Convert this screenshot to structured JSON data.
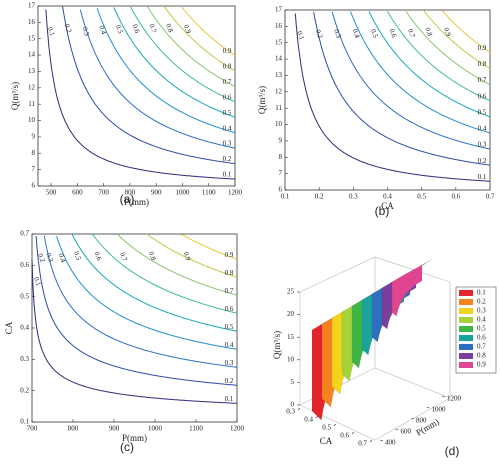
{
  "chart_data": [
    {
      "type": "contour",
      "caption": "(a)",
      "xlabel": "P(mm)",
      "ylabel": "Q(m³/s)",
      "xlim": [
        450,
        1200
      ],
      "ylim": [
        6,
        17
      ],
      "xticks": [
        500,
        600,
        700,
        800,
        900,
        1000,
        1100,
        1200
      ],
      "yticks": [
        6,
        7,
        8,
        9,
        10,
        11,
        12,
        13,
        14,
        15,
        16,
        17
      ],
      "levels": [
        0.1,
        0.2,
        0.3,
        0.4,
        0.5,
        0.6,
        0.7,
        0.8,
        0.9
      ],
      "colors": [
        "#2b2d7a",
        "#2d4aa8",
        "#2a6fc9",
        "#1f8fd0",
        "#17a8b8",
        "#3fbc9a",
        "#8cc46d",
        "#c9c44a",
        "#e8c83a"
      ]
    },
    {
      "type": "contour",
      "caption": "(b)",
      "xlabel": "CA",
      "ylabel": "Q(m³/s)",
      "xlim": [
        0.1,
        0.7
      ],
      "ylim": [
        6,
        17
      ],
      "xticks": [
        0.1,
        0.2,
        0.3,
        0.4,
        0.5,
        0.6,
        0.7
      ],
      "yticks": [
        6,
        7,
        8,
        9,
        10,
        11,
        12,
        13,
        14,
        15,
        16,
        17
      ],
      "levels": [
        0.1,
        0.2,
        0.3,
        0.4,
        0.5,
        0.6,
        0.7,
        0.8,
        0.9
      ],
      "colors": [
        "#2b2d7a",
        "#2d4aa8",
        "#2a6fc9",
        "#1f8fd0",
        "#17a8b8",
        "#3fbc9a",
        "#8cc46d",
        "#c9c44a",
        "#e8c83a"
      ]
    },
    {
      "type": "contour",
      "caption": "(c)",
      "xlabel": "P(mm)",
      "ylabel": "CA",
      "xlim": [
        700,
        1200
      ],
      "ylim": [
        0.1,
        0.7
      ],
      "xticks": [
        700,
        800,
        900,
        1000,
        1100,
        1200
      ],
      "yticks": [
        0.1,
        0.2,
        0.3,
        0.4,
        0.5,
        0.6,
        0.7
      ],
      "levels": [
        0.1,
        0.2,
        0.3,
        0.4,
        0.5,
        0.6,
        0.7,
        0.8,
        0.9
      ],
      "colors": [
        "#2b2d7a",
        "#2d4aa8",
        "#2a6fc9",
        "#1f8fd0",
        "#17a8b8",
        "#3fbc9a",
        "#8cc46d",
        "#c9c44a",
        "#e8c83a"
      ]
    },
    {
      "type": "surface3d",
      "caption": "(d)",
      "xlabel": "CA",
      "ylabel": "P(mm)",
      "zlabel": "Q(m³/s)",
      "xticks": [
        0.3,
        0.4,
        0.5,
        0.6,
        0.7
      ],
      "yticks": [
        400,
        600,
        800,
        1000,
        1200
      ],
      "zticks": [
        0,
        5,
        10,
        15,
        20,
        25
      ],
      "series": [
        {
          "name": "0.1",
          "color": "#e3242b"
        },
        {
          "name": "0.2",
          "color": "#f5821f"
        },
        {
          "name": "0.3",
          "color": "#f3d31c"
        },
        {
          "name": "0.4",
          "color": "#a6d33a"
        },
        {
          "name": "0.5",
          "color": "#3fb548"
        },
        {
          "name": "0.6",
          "color": "#1aa39a"
        },
        {
          "name": "0.7",
          "color": "#2e6fc0"
        },
        {
          "name": "0.8",
          "color": "#7a3f9d"
        },
        {
          "name": "0.9",
          "color": "#e0458f"
        }
      ]
    }
  ]
}
